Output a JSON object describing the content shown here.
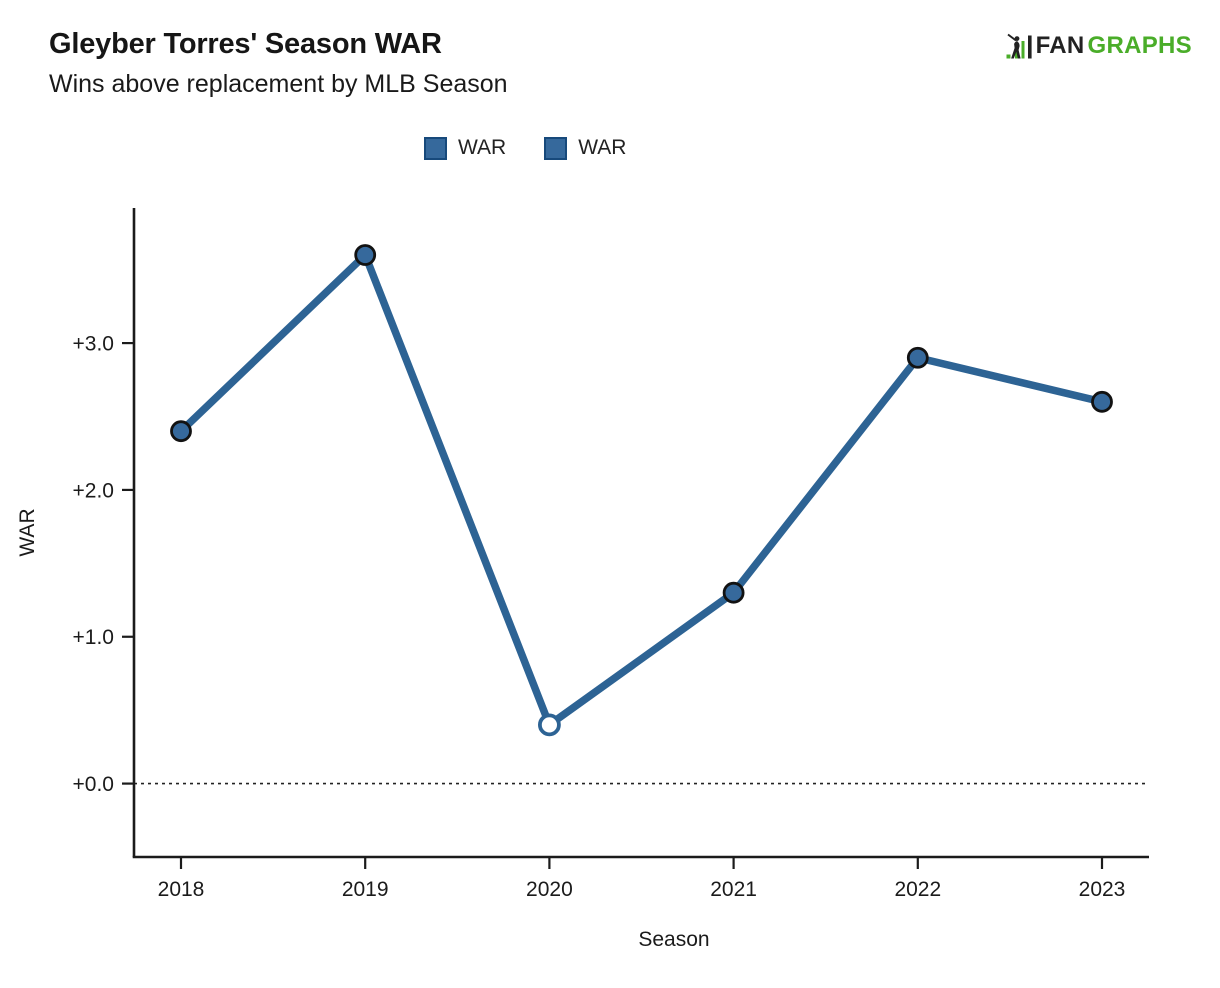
{
  "header": {
    "title": "Gleyber Torres' Season WAR",
    "subtitle": "Wins above replacement by MLB Season"
  },
  "logo": {
    "fan": "FAN",
    "graphs": "GRAPHS",
    "green": "#4aad29",
    "dark": "#222222"
  },
  "legend": {
    "items": [
      {
        "label": "WAR",
        "swatch_fill": "#36699c",
        "swatch_border": "#17497b"
      },
      {
        "label": "WAR",
        "swatch_fill": "#36699c",
        "swatch_border": "#17497b"
      }
    ]
  },
  "chart_data": {
    "type": "line",
    "title": "Gleyber Torres' Season WAR",
    "subtitle": "Wins above replacement by MLB Season",
    "xlabel": "Season",
    "ylabel": "WAR",
    "categories": [
      "2018",
      "2019",
      "2020",
      "2021",
      "2022",
      "2023"
    ],
    "series": [
      {
        "name": "WAR",
        "values": [
          2.4,
          3.6,
          0.4,
          1.3,
          2.9,
          2.6
        ],
        "line_color": "#2d6394",
        "marker_fill": "#36699c",
        "marker_stroke": "#121212",
        "open_marker_categories": [
          "2020"
        ]
      }
    ],
    "yticks": [
      {
        "value": 0,
        "label": "+0.0"
      },
      {
        "value": 1,
        "label": "+1.0"
      },
      {
        "value": 2,
        "label": "+2.0"
      },
      {
        "value": 3,
        "label": "+3.0"
      }
    ],
    "ylim": [
      -0.5,
      3.92
    ],
    "zero_line": {
      "value": 0,
      "style": "dotted"
    },
    "grid": false,
    "legend_position": "top-center"
  }
}
